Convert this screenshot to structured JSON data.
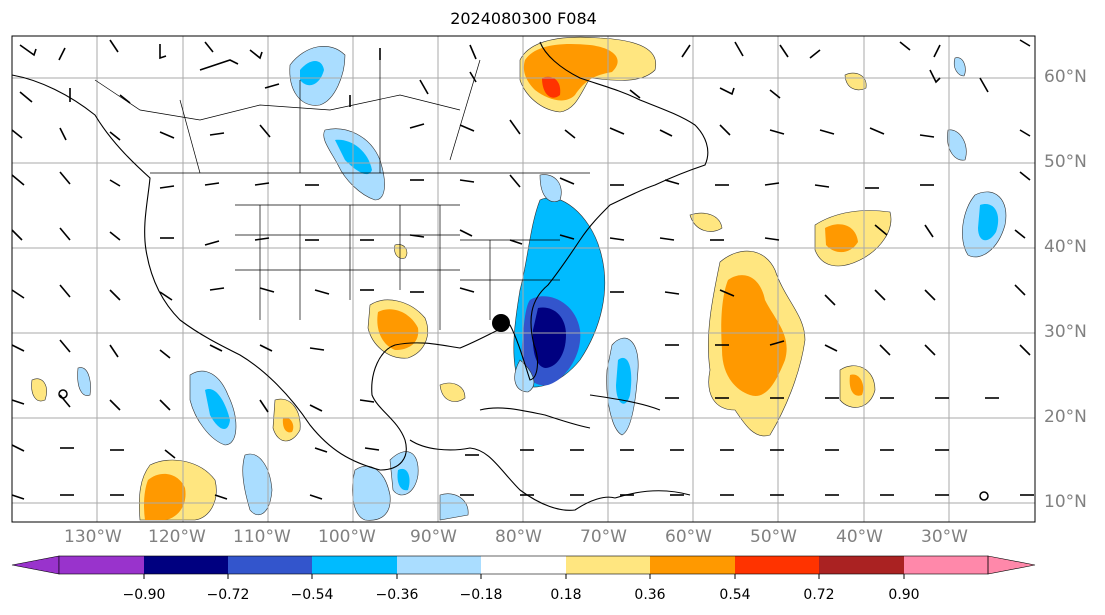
{
  "title": "2024080300 F084",
  "lon_labels": [
    "130°W",
    "120°W",
    "110°W",
    "100°W",
    "90°W",
    "80°W",
    "70°W",
    "60°W",
    "50°W",
    "40°W",
    "30°W"
  ],
  "lat_labels": [
    "60°N",
    "50°N",
    "40°N",
    "30°N",
    "20°N",
    "10°N"
  ],
  "colorbar": {
    "ticks": [
      "−0.90",
      "−0.72",
      "−0.54",
      "−0.36",
      "−0.18",
      "0.18",
      "0.36",
      "0.54",
      "0.72",
      "0.90"
    ],
    "colors": [
      "#9933cc",
      "#000080",
      "#3355cc",
      "#00bbff",
      "#aaddff",
      "#ffffff",
      "#ffe680",
      "#ff9900",
      "#ff3300",
      "#aa2222",
      "#ff88aa"
    ]
  },
  "marker": "storm-center"
}
